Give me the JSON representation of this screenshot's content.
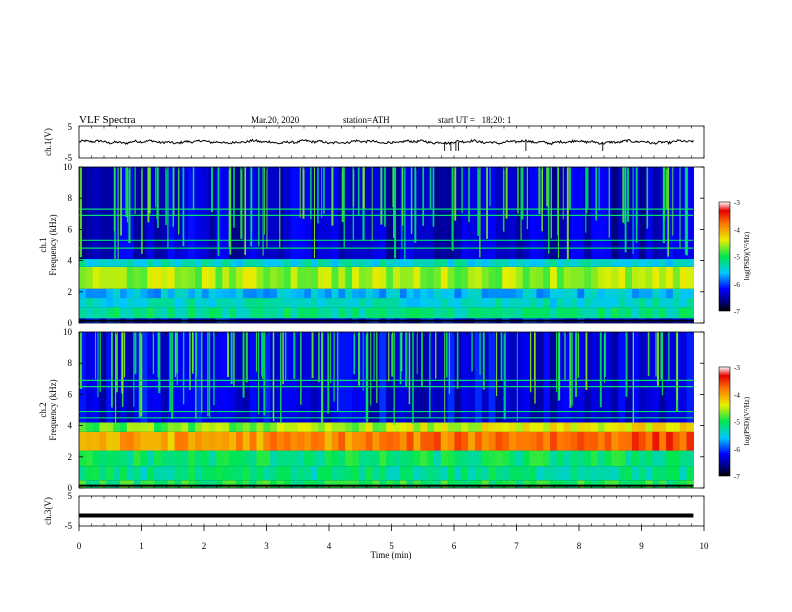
{
  "header": {
    "title": "VLF Spectra",
    "date": "Mar.20, 2020",
    "station": "station=ATH",
    "start_ut": "start UT =   18:20: 1"
  },
  "chart_data": {
    "type": "heatmap",
    "time_axis": {
      "label": "Time (min)",
      "range": [
        0,
        10
      ],
      "ticks": [
        0,
        1,
        2,
        3,
        4,
        5,
        6,
        7,
        8,
        9,
        10
      ],
      "data_end_min": 9.83
    },
    "panels": [
      {
        "type": "line",
        "ylabel": "ch.1(V)",
        "ylim": [
          -5,
          5
        ],
        "yticks": [
          "5",
          "-5"
        ],
        "mean_value": 0.0,
        "noise_amplitude": 0.6,
        "dropout_times_min": [
          5.85,
          5.95,
          6.03,
          6.07,
          7.15,
          8.38
        ]
      },
      {
        "type": "heatmap",
        "ylabel_top": "ch.1",
        "ylabel": "Frequency (kHz)",
        "ylim": [
          0,
          10
        ],
        "yticks": [
          "0",
          "2",
          "4",
          "6",
          "8",
          "10"
        ],
        "colorbar": {
          "label": "log(PSD)(V²/Hz)",
          "range": [
            -7,
            -3
          ],
          "ticks": [
            "-3",
            "-4",
            "-5",
            "-6",
            "-7"
          ]
        },
        "bands_khz": [
          {
            "band": [
              0,
              0.3
            ],
            "log_psd": -6.2
          },
          {
            "band": [
              0.3,
              1.0
            ],
            "log_psd": -5.2
          },
          {
            "band": [
              1.0,
              1.6
            ],
            "log_psd": -5.4
          },
          {
            "band": [
              1.6,
              2.2
            ],
            "log_psd": -5.6
          },
          {
            "band": [
              2.2,
              3.6
            ],
            "log_psd": -4.6
          },
          {
            "band": [
              3.6,
              4.1
            ],
            "log_psd": -5.4
          },
          {
            "band": [
              4.1,
              10.0
            ],
            "log_psd": -6.4
          }
        ],
        "tonal_lines_khz": [
          4.8,
          5.3,
          6.9,
          7.3
        ]
      },
      {
        "type": "heatmap",
        "ylabel_top": "ch.2",
        "ylabel": "Frequency (kHz)",
        "ylim": [
          0,
          10
        ],
        "yticks": [
          "0",
          "2",
          "4",
          "6",
          "8",
          "10"
        ],
        "colorbar": {
          "label": "log(PSD)(V²/Hz)",
          "range": [
            -7,
            -3
          ],
          "ticks": [
            "-3",
            "-4",
            "-5",
            "-6",
            "-7"
          ]
        },
        "bands_khz": [
          {
            "band": [
              0,
              0.5
            ],
            "log_psd": -5.0
          },
          {
            "band": [
              0.5,
              1.4
            ],
            "log_psd": -5.2
          },
          {
            "band": [
              1.4,
              2.4
            ],
            "log_psd": -5.1
          },
          {
            "band": [
              2.4,
              3.6
            ],
            "log_psd": -4.1
          },
          {
            "band": [
              3.6,
              4.2
            ],
            "log_psd": -4.8
          },
          {
            "band": [
              4.2,
              10.0
            ],
            "log_psd": -6.3
          }
        ],
        "tonal_lines_khz": [
          4.5,
          4.9,
          6.5,
          6.9
        ]
      },
      {
        "type": "line",
        "ylabel": "ch.3(V)",
        "ylim": [
          -5,
          5
        ],
        "yticks": [
          "5",
          "-5"
        ],
        "mean_value": -1.5,
        "noise_amplitude": 0.0
      }
    ]
  }
}
